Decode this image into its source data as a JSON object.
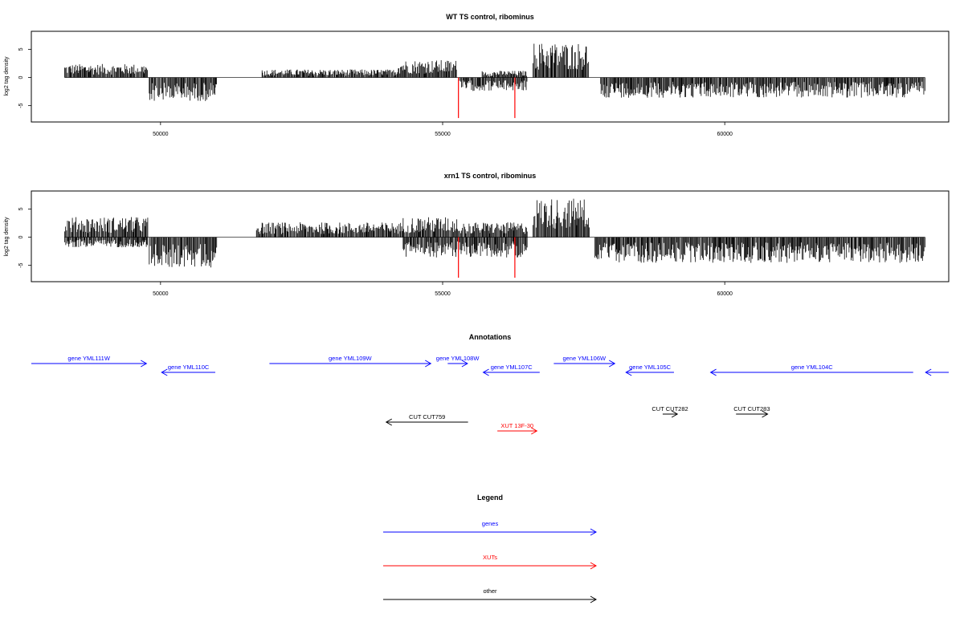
{
  "colors": {
    "data": "#000000",
    "highlight": "#ff0000",
    "genes": "#0000ff",
    "xuts": "#ff0000",
    "other": "#000000"
  },
  "chart_data": [
    {
      "type": "bar",
      "title": "WT TS control, ribominus",
      "ylabel": "log2 tag density",
      "xlim": [
        47710,
        63970
      ],
      "ylim": [
        -7.9,
        8.2
      ],
      "xticks": [
        50000,
        55000,
        60000
      ],
      "yticks": [
        -5,
        0,
        5
      ],
      "highlight_positions": [
        55280,
        56280
      ],
      "highlight_depth": -7.2,
      "segments": [
        {
          "start": 48300,
          "end": 49780,
          "level": 2.0,
          "dir": 1
        },
        {
          "start": 49800,
          "end": 51000,
          "level": -3.5,
          "dir": -1
        },
        {
          "start": 51800,
          "end": 54200,
          "level": 1.2,
          "dir": 1
        },
        {
          "start": 54200,
          "end": 55250,
          "level": 2.6,
          "dir": 1
        },
        {
          "start": 55300,
          "end": 56500,
          "level": -2.0,
          "dir": -1
        },
        {
          "start": 55700,
          "end": 56500,
          "level": 1.0,
          "dir": 1
        },
        {
          "start": 56600,
          "end": 57600,
          "level": 5.2,
          "dir": 1
        },
        {
          "start": 57800,
          "end": 63550,
          "level": -3.0,
          "dir": -1
        }
      ]
    },
    {
      "type": "bar",
      "title": "xrn1 TS control, ribominus",
      "ylabel": "log2 tag density",
      "xlim": [
        47710,
        63970
      ],
      "ylim": [
        -7.9,
        8.2
      ],
      "xticks": [
        50000,
        55000,
        60000
      ],
      "yticks": [
        -5,
        0,
        5
      ],
      "highlight_positions": [
        55280,
        56280
      ],
      "highlight_depth": -7.2,
      "segments": [
        {
          "start": 48300,
          "end": 49780,
          "level": 3.0,
          "dir": 1
        },
        {
          "start": 48300,
          "end": 49780,
          "level": -1.5,
          "dir": -1
        },
        {
          "start": 49800,
          "end": 51000,
          "level": -4.5,
          "dir": -1
        },
        {
          "start": 51700,
          "end": 54300,
          "level": 2.2,
          "dir": 1
        },
        {
          "start": 54300,
          "end": 55300,
          "level": 3.0,
          "dir": 1
        },
        {
          "start": 54300,
          "end": 56500,
          "level": -3.0,
          "dir": -1
        },
        {
          "start": 55300,
          "end": 56500,
          "level": 2.2,
          "dir": 1
        },
        {
          "start": 56600,
          "end": 57600,
          "level": 5.8,
          "dir": 1
        },
        {
          "start": 57700,
          "end": 63550,
          "level": -3.8,
          "dir": -1
        }
      ]
    }
  ],
  "annotations": {
    "title": "Annotations",
    "items": [
      {
        "label": "gene YML111W",
        "kind": "gene",
        "start": 47710,
        "end": 49750,
        "strand": 1,
        "row": 0
      },
      {
        "label": "gene YML110C",
        "kind": "gene",
        "start": 50020,
        "end": 50970,
        "strand": -1,
        "row": 1
      },
      {
        "label": "gene YML109W",
        "kind": "gene",
        "start": 51930,
        "end": 54790,
        "strand": 1,
        "row": 0
      },
      {
        "label": "gene YML108W",
        "kind": "gene",
        "start": 55090,
        "end": 55440,
        "strand": 1,
        "row": 0
      },
      {
        "label": "gene YML107C",
        "kind": "gene",
        "start": 55720,
        "end": 56720,
        "strand": -1,
        "row": 1
      },
      {
        "label": "gene YML106W",
        "kind": "gene",
        "start": 56970,
        "end": 58050,
        "strand": 1,
        "row": 0
      },
      {
        "label": "gene YML105C",
        "kind": "gene",
        "start": 58250,
        "end": 59100,
        "strand": -1,
        "row": 1
      },
      {
        "label": "gene YML104C",
        "kind": "gene",
        "start": 59750,
        "end": 63340,
        "strand": -1,
        "row": 1
      },
      {
        "label": "",
        "kind": "gene",
        "start": 63560,
        "end": 63970,
        "strand": -1,
        "row": 1
      },
      {
        "label": "CUT CUT759",
        "kind": "other",
        "start": 54000,
        "end": 55450,
        "strand": -1,
        "row": 3
      },
      {
        "label": "CUT CUT282",
        "kind": "other",
        "start": 58900,
        "end": 59160,
        "strand": 1,
        "row": 2
      },
      {
        "label": "CUT CUT283",
        "kind": "other",
        "start": 60200,
        "end": 60760,
        "strand": 1,
        "row": 2
      },
      {
        "label": "XUT 13F-30",
        "kind": "xut",
        "start": 55970,
        "end": 56670,
        "strand": 1,
        "row": 4
      }
    ]
  },
  "legend": {
    "title": "Legend",
    "items": [
      {
        "label": "genes",
        "kind": "genes"
      },
      {
        "label": "XUTs",
        "kind": "xuts"
      },
      {
        "label": "other",
        "kind": "other"
      }
    ]
  }
}
